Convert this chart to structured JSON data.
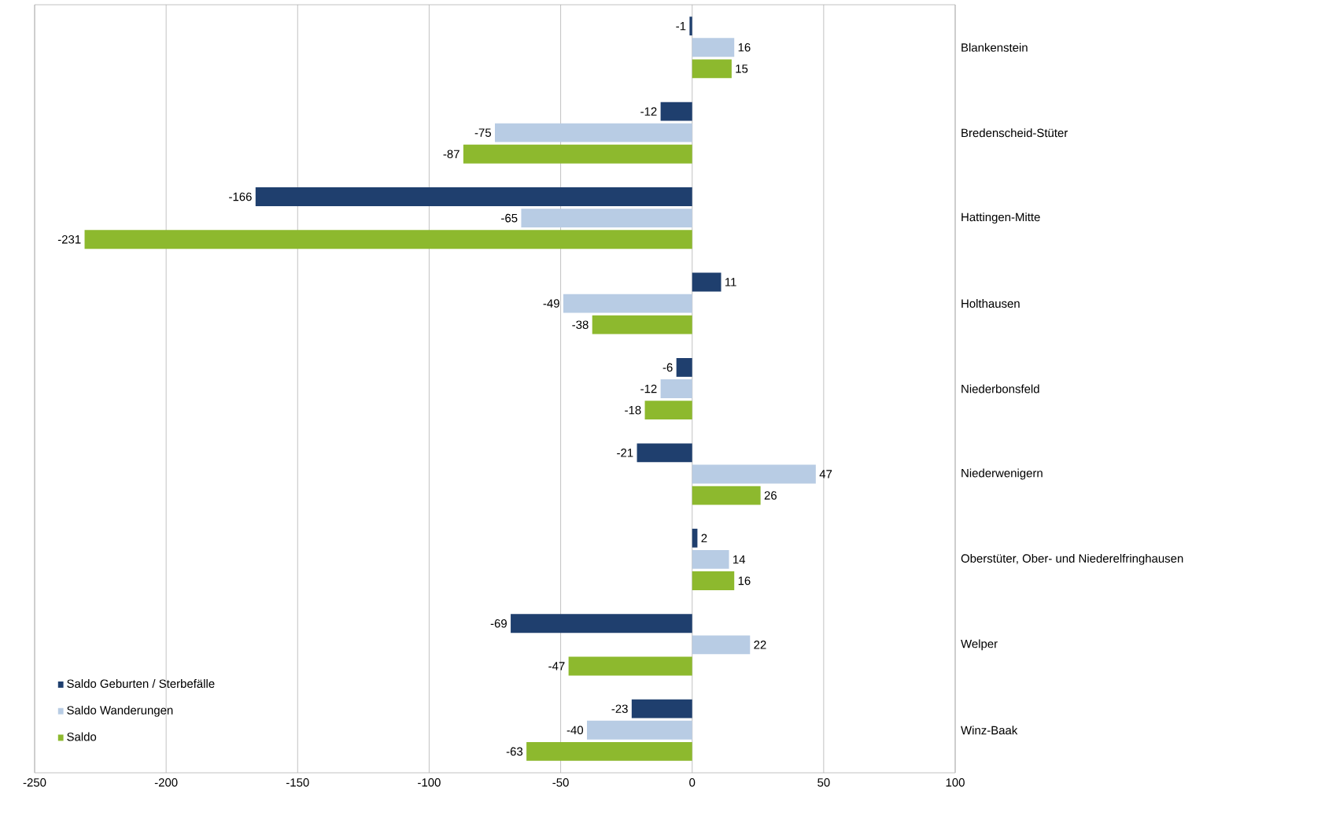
{
  "chart_data": {
    "type": "bar",
    "orientation": "horizontal",
    "categories": [
      "Blankenstein",
      "Bredenscheid-Stüter",
      "Hattingen-Mitte",
      "Holthausen",
      "Niederbonsfeld",
      "Niederwenigern",
      "Oberstüter, Ober- und Niederelfringhausen",
      "Welper",
      "Winz-Baak"
    ],
    "series": [
      {
        "name": "Saldo Geburten / Sterbefälle",
        "color": "#1f3f6e",
        "values": [
          -1,
          -12,
          -166,
          11,
          -6,
          -21,
          2,
          -69,
          -23
        ]
      },
      {
        "name": "Saldo Wanderungen",
        "color": "#b8cce4",
        "values": [
          16,
          -75,
          -65,
          -49,
          -12,
          47,
          14,
          22,
          -40
        ]
      },
      {
        "name": "Saldo",
        "color": "#8db92e",
        "values": [
          15,
          -87,
          -231,
          -38,
          -18,
          26,
          16,
          -47,
          -63
        ]
      }
    ],
    "xlim": [
      -250,
      100
    ],
    "xticks": [
      -250,
      -200,
      -150,
      -100,
      -50,
      0,
      50,
      100
    ],
    "grid": "x",
    "legend": "bottom left",
    "data_labels": true
  }
}
